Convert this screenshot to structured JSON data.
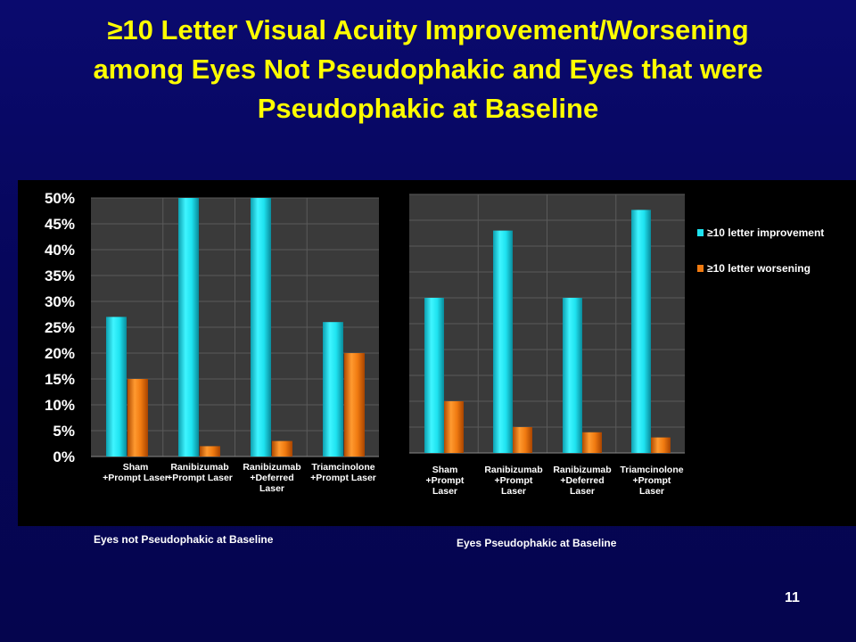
{
  "slide": {
    "title_lines": [
      "≥10 Letter Visual Acuity Improvement/Worsening",
      "among Eyes Not Pseudophakic and Eyes that were",
      "Pseudophakic at Baseline"
    ],
    "page_number": "11"
  },
  "colors": {
    "background": "#07075f",
    "title": "#ffff00",
    "improvement": "#1ee3f0",
    "worsening": "#f07a10",
    "plot_bg": "#3a3a3a"
  },
  "chart_data": [
    {
      "type": "bar",
      "caption": "Eyes not Pseudophakic at Baseline",
      "categories": [
        [
          "Sham",
          "+Prompt Laser"
        ],
        [
          "Ranibizumab",
          "+Prompt Laser"
        ],
        [
          "Ranibizumab",
          "+Deferred",
          "Laser"
        ],
        [
          "Triamcinolone",
          "+Prompt Laser"
        ]
      ],
      "series": [
        {
          "name": "≥10 letter improvement",
          "values": [
            27,
            50,
            50,
            26
          ]
        },
        {
          "name": "≥10 letter worsening",
          "values": [
            15,
            2,
            3,
            20
          ]
        }
      ],
      "ylim": [
        0,
        50
      ],
      "yticks": [
        "0%",
        "5%",
        "10%",
        "15%",
        "20%",
        "25%",
        "30%",
        "35%",
        "40%",
        "45%",
        "50%"
      ],
      "grid": true
    },
    {
      "type": "bar",
      "caption": "Eyes Pseudophakic at Baseline",
      "categories": [
        [
          "Sham",
          "+Prompt",
          "Laser"
        ],
        [
          "Ranibizumab",
          "+Prompt",
          "Laser"
        ],
        [
          "Ranibizumab",
          "+Deferred",
          "Laser"
        ],
        [
          "Triamcinolone",
          "+Prompt",
          "Laser"
        ]
      ],
      "series": [
        {
          "name": "≥10 letter improvement",
          "values": [
            30,
            43,
            30,
            47
          ]
        },
        {
          "name": "≥10 letter worsening",
          "values": [
            10,
            5,
            4,
            3
          ]
        }
      ],
      "ylim": [
        0,
        50
      ],
      "yticks": [],
      "grid": true,
      "legend": "right"
    }
  ]
}
